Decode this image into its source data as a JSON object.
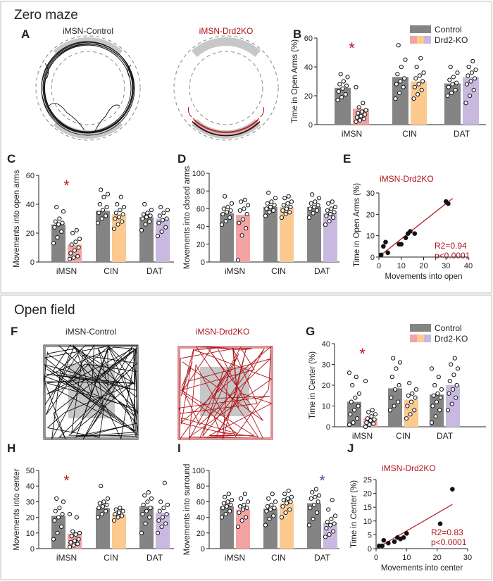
{
  "sections": {
    "zero_maze": "Zero maze",
    "open_field": "Open field"
  },
  "panel_letters": {
    "A": "A",
    "B": "B",
    "C": "C",
    "D": "D",
    "E": "E",
    "F": "F",
    "G": "G",
    "H": "H",
    "I": "I",
    "J": "J"
  },
  "legend": {
    "control": "Control",
    "ko": "Drd2-KO"
  },
  "categories": [
    "iMSN",
    "CIN",
    "DAT"
  ],
  "colors": {
    "control": "#848484",
    "imsn_ko": "#f4a3a3",
    "cin_ko": "#fcc98f",
    "dat_ko": "#c9b8e0",
    "imsn_track": "#b0151a",
    "star_red": "#c0161f",
    "star_purple": "#6a3d9a",
    "arena": "#c7c7c7"
  },
  "panelA": {
    "control_title": "iMSN-Control",
    "ko_title": "iMSN-Drd2KO"
  },
  "panelF": {
    "control_title": "iMSN-Control",
    "ko_title": "iMSN-Drd2KO"
  },
  "panelE": {
    "title": "iMSN-Drd2KO",
    "r2": "R2=0.94",
    "p": "p<0.0001"
  },
  "panelJ": {
    "title": "iMSN-Drd2KO",
    "r2": "R2=0.83",
    "p": "p<0.0001"
  },
  "chart_data": [
    {
      "id": "B",
      "type": "bar",
      "ylabel": "Time in Open Arms (%)",
      "ylim": [
        0,
        60
      ],
      "yticks": [
        0,
        20,
        40,
        60
      ],
      "categories": [
        "iMSN",
        "CIN",
        "DAT"
      ],
      "series": [
        {
          "name": "Control",
          "values": [
            25.5,
            33,
            28.5
          ]
        },
        {
          "name": "Drd2-KO",
          "values": [
            11,
            30,
            33
          ]
        }
      ],
      "points": {
        "Control": [
          [
            17,
            19,
            21,
            23,
            25,
            27,
            28,
            30,
            33,
            35
          ],
          [
            18,
            22,
            26,
            28,
            30,
            32,
            35,
            40,
            45,
            55
          ],
          [
            20,
            22,
            24,
            26,
            28,
            29,
            31,
            33,
            36,
            40
          ]
        ],
        "Drd2-KO": [
          [
            2,
            3,
            4,
            5,
            6,
            7,
            8,
            9,
            10,
            12,
            15,
            26
          ],
          [
            18,
            21,
            24,
            26,
            28,
            30,
            32,
            34,
            36,
            40,
            46
          ],
          [
            15,
            20,
            24,
            28,
            30,
            32,
            34,
            36,
            38,
            40,
            44
          ]
        ]
      },
      "star": {
        "group": 0,
        "color_key": "star_red"
      }
    },
    {
      "id": "C",
      "type": "bar",
      "ylabel": "Movements into open arms",
      "ylim": [
        0,
        60
      ],
      "yticks": [
        0,
        20,
        40,
        60
      ],
      "categories": [
        "iMSN",
        "CIN",
        "DAT"
      ],
      "series": [
        {
          "name": "Control",
          "values": [
            26,
            35.5,
            31
          ]
        },
        {
          "name": "Drd2-KO",
          "values": [
            12,
            33,
            30
          ]
        }
      ],
      "points": {
        "Control": [
          [
            13,
            17,
            21,
            24,
            26,
            27,
            28,
            30,
            35,
            38
          ],
          [
            27,
            30,
            32,
            34,
            36,
            38,
            40,
            45,
            47,
            50
          ],
          [
            22,
            26,
            28,
            30,
            31,
            32,
            33,
            34,
            36,
            40
          ]
        ],
        "Drd2-KO": [
          [
            2,
            3,
            4,
            6,
            8,
            10,
            12,
            14,
            16,
            20,
            22
          ],
          [
            23,
            26,
            28,
            30,
            31,
            33,
            34,
            36,
            38,
            40,
            45
          ],
          [
            18,
            21,
            24,
            27,
            29,
            30,
            32,
            34,
            36,
            38
          ]
        ]
      },
      "star": {
        "group": 0,
        "color_key": "star_red"
      }
    },
    {
      "id": "D",
      "type": "bar",
      "ylabel": "Movements into closed arms",
      "ylim": [
        0,
        100
      ],
      "yticks": [
        0,
        20,
        40,
        60,
        80,
        100
      ],
      "categories": [
        "iMSN",
        "CIN",
        "DAT"
      ],
      "series": [
        {
          "name": "Control",
          "values": [
            55,
            62,
            62
          ]
        },
        {
          "name": "Drd2-KO",
          "values": [
            53,
            62,
            55
          ]
        }
      ],
      "points": {
        "Control": [
          [
            42,
            46,
            50,
            54,
            56,
            58,
            60,
            62,
            66,
            74
          ],
          [
            52,
            56,
            58,
            60,
            62,
            64,
            66,
            68,
            72,
            78
          ],
          [
            50,
            55,
            58,
            60,
            62,
            64,
            66,
            68,
            72,
            76
          ]
        ],
        "Drd2-KO": [
          [
            2,
            30,
            38,
            44,
            48,
            54,
            58,
            60,
            64,
            68,
            70
          ],
          [
            50,
            54,
            56,
            58,
            60,
            62,
            64,
            66,
            68,
            72,
            74
          ],
          [
            42,
            46,
            50,
            52,
            54,
            56,
            58,
            60,
            62,
            66,
            68
          ]
        ]
      }
    },
    {
      "id": "E",
      "type": "scatter",
      "xlabel": "Movements into open",
      "ylabel": "Time in Open Arms (%)",
      "xlim": [
        0,
        40
      ],
      "ylim": [
        0,
        30
      ],
      "xticks": [
        0,
        10,
        20,
        30,
        40
      ],
      "yticks": [
        0,
        10,
        20,
        30
      ],
      "x": [
        1,
        2,
        3,
        4,
        9,
        10,
        12,
        13,
        14,
        16,
        30,
        31
      ],
      "y": [
        1,
        5,
        7,
        2,
        6,
        6,
        9,
        11,
        12,
        11,
        26,
        25
      ],
      "fit": {
        "x": [
          0,
          33
        ],
        "y": [
          0.2,
          27.5
        ]
      }
    },
    {
      "id": "G",
      "type": "bar",
      "ylabel": "Time in Center (%)",
      "ylim": [
        0,
        40
      ],
      "yticks": [
        0,
        10,
        20,
        30,
        40
      ],
      "categories": [
        "iMSN",
        "CIN",
        "DAT"
      ],
      "series": [
        {
          "name": "Control",
          "values": [
            12,
            18.5,
            15.5
          ]
        },
        {
          "name": "Drd2-KO",
          "values": [
            4,
            13,
            20
          ]
        }
      ],
      "points": {
        "Control": [
          [
            1,
            2,
            4,
            6,
            8,
            10,
            12,
            14,
            16,
            20,
            24,
            26
          ],
          [
            8,
            10,
            12,
            14,
            18,
            20,
            24,
            28,
            31,
            33
          ],
          [
            2,
            5,
            8,
            10,
            12,
            14,
            15,
            16,
            18,
            20,
            24,
            28
          ]
        ],
        "Drd2-KO": [
          [
            0,
            1,
            1.5,
            2,
            3,
            3.5,
            4,
            5,
            6,
            7,
            8,
            22
          ],
          [
            4,
            6,
            8,
            10,
            12,
            14,
            15,
            16,
            18,
            21
          ],
          [
            8,
            11,
            14,
            16,
            18,
            20,
            22,
            25,
            28,
            30,
            33
          ]
        ]
      },
      "star": {
        "group": 0,
        "color_key": "star_red"
      }
    },
    {
      "id": "H",
      "type": "bar",
      "ylabel": "Movements into center",
      "ylim": [
        0,
        50
      ],
      "yticks": [
        0,
        10,
        20,
        30,
        40,
        50
      ],
      "categories": [
        "iMSN",
        "CIN",
        "DAT"
      ],
      "series": [
        {
          "name": "Control",
          "values": [
            21,
            26,
            27
          ]
        },
        {
          "name": "Drd2-KO",
          "values": [
            9.5,
            22,
            23
          ]
        }
      ],
      "points": {
        "Control": [
          [
            6,
            10,
            14,
            18,
            20,
            22,
            24,
            26,
            30,
            32
          ],
          [
            20,
            22,
            24,
            26,
            27,
            28,
            29,
            30,
            32,
            40
          ],
          [
            10,
            16,
            20,
            22,
            24,
            26,
            28,
            30,
            32,
            34,
            36
          ]
        ],
        "Drd2-KO": [
          [
            1,
            2,
            3,
            4,
            5,
            6,
            8,
            9,
            10,
            11,
            20,
            22
          ],
          [
            18,
            20,
            21,
            22,
            23,
            24,
            25,
            26
          ],
          [
            10,
            14,
            16,
            18,
            20,
            22,
            24,
            26,
            28,
            30,
            42
          ]
        ]
      },
      "star": {
        "group": 0,
        "color_key": "star_red"
      }
    },
    {
      "id": "I",
      "type": "bar",
      "ylabel": "Movements into surround",
      "ylim": [
        0,
        100
      ],
      "yticks": [
        0,
        20,
        40,
        60,
        80,
        100
      ],
      "categories": [
        "iMSN",
        "CIN",
        "DAT"
      ],
      "series": [
        {
          "name": "Control",
          "values": [
            54,
            51,
            58
          ]
        },
        {
          "name": "Drd2-KO",
          "values": [
            50,
            58,
            33
          ]
        }
      ],
      "points": {
        "Control": [
          [
            40,
            44,
            48,
            52,
            54,
            56,
            58,
            60,
            62,
            66,
            70
          ],
          [
            30,
            38,
            42,
            48,
            50,
            52,
            54,
            56,
            60,
            64,
            70
          ],
          [
            30,
            38,
            46,
            52,
            56,
            60,
            64,
            66,
            68,
            72,
            76
          ]
        ],
        "Drd2-KO": [
          [
            28,
            36,
            40,
            46,
            50,
            52,
            54,
            56,
            60,
            64,
            70
          ],
          [
            40,
            46,
            50,
            54,
            58,
            60,
            62,
            64,
            66,
            70,
            74
          ],
          [
            15,
            18,
            22,
            26,
            30,
            32,
            34,
            38,
            42,
            50,
            62
          ]
        ]
      },
      "star": {
        "group": 2,
        "color_key": "star_purple"
      }
    },
    {
      "id": "J",
      "type": "scatter",
      "xlabel": "Movements into center",
      "ylabel": "Time in Center (%)",
      "xlim": [
        0,
        30
      ],
      "ylim": [
        0,
        25
      ],
      "xticks": [
        0,
        10,
        20,
        30
      ],
      "yticks": [
        0,
        5,
        10,
        15,
        20,
        25
      ],
      "x": [
        1,
        2,
        2.5,
        4,
        6,
        7,
        8,
        9,
        10,
        21,
        25
      ],
      "y": [
        1,
        1,
        3,
        2,
        2.5,
        4,
        3.5,
        4,
        5.5,
        9,
        21.5
      ],
      "fit": {
        "x": [
          0,
          25
        ],
        "y": [
          0,
          16
        ]
      }
    }
  ]
}
